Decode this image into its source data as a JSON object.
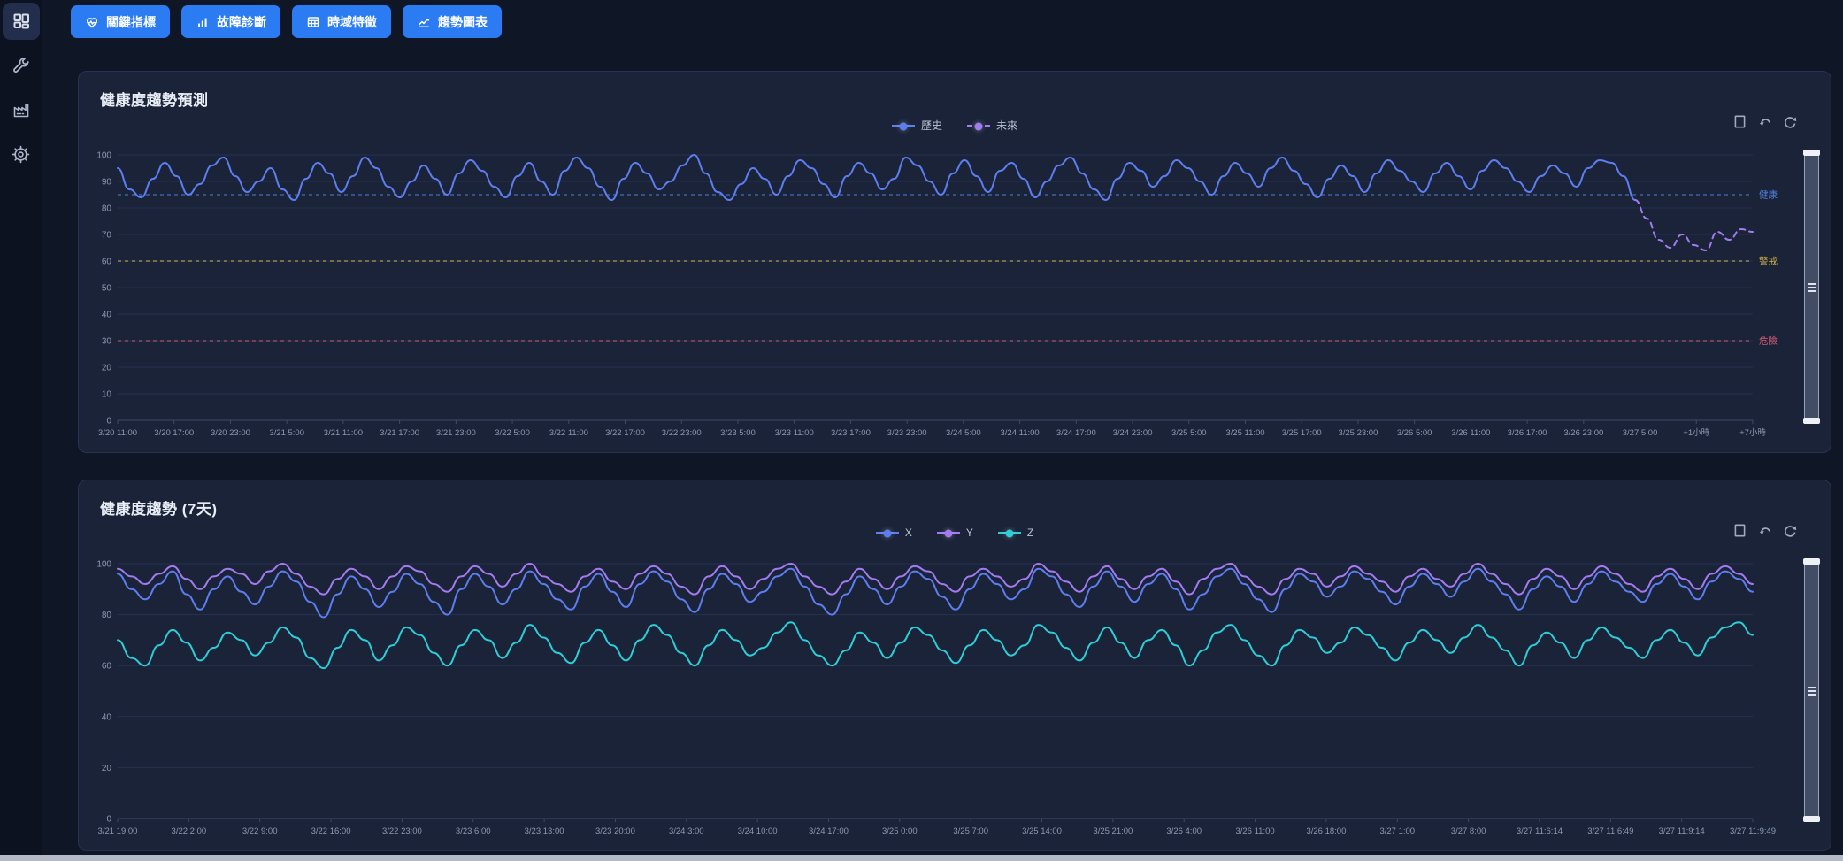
{
  "sidebar": {
    "items": [
      {
        "id": "dashboard",
        "icon": "dashboard-grid-icon",
        "active": true
      },
      {
        "id": "tools",
        "icon": "wrench-icon",
        "active": false
      },
      {
        "id": "factory",
        "icon": "factory-icon",
        "active": false
      },
      {
        "id": "settings",
        "icon": "gear-icon",
        "active": false
      }
    ]
  },
  "toolbar": {
    "buttons": [
      {
        "label": "關鍵指標",
        "icon": "heart-pulse-icon"
      },
      {
        "label": "故障診斷",
        "icon": "bar-chart-icon"
      },
      {
        "label": "時域特徵",
        "icon": "table-icon"
      },
      {
        "label": "趨勢圖表",
        "icon": "line-chart-icon"
      }
    ]
  },
  "panels": [
    {
      "title": "健康度趨勢預測"
    },
    {
      "title": "健康度趨勢 (7天)"
    }
  ],
  "colors": {
    "accent_blue": "#2b7bf3",
    "series_blue": "#5d7ef0",
    "series_purple": "#a37bf0",
    "series_cyan": "#2ccfd8",
    "threshold_blue": "#4f7fd9",
    "threshold_yellow": "#d7b84a",
    "threshold_red": "#d45b70",
    "panel_bg": "#1a2338",
    "page_bg": "#0f1626"
  },
  "chart_data": [
    {
      "type": "line",
      "name": "health-forecast",
      "title": "健康度趨勢預測",
      "ylim": [
        0,
        100
      ],
      "yticks": [
        0,
        10,
        20,
        30,
        40,
        50,
        60,
        70,
        80,
        90,
        100
      ],
      "grid": true,
      "legend_position": "top-center",
      "legend": [
        {
          "name": "歷史",
          "color": "#5d7ef0",
          "dashed": false
        },
        {
          "name": "未來",
          "color": "#a37bf0",
          "dashed": true
        }
      ],
      "thresholds": [
        {
          "value": 85,
          "label": "健康",
          "color": "#4f7fd9"
        },
        {
          "value": 60,
          "label": "警戒",
          "color": "#d7b84a"
        },
        {
          "value": 30,
          "label": "危險",
          "color": "#d45b70"
        }
      ],
      "x_labels": [
        "3/20 11:00",
        "3/20 17:00",
        "3/20 23:00",
        "3/21 5:00",
        "3/21 11:00",
        "3/21 17:00",
        "3/21 23:00",
        "3/22 5:00",
        "3/22 11:00",
        "3/22 17:00",
        "3/22 23:00",
        "3/23 5:00",
        "3/23 11:00",
        "3/23 17:00",
        "3/23 23:00",
        "3/24 5:00",
        "3/24 11:00",
        "3/24 17:00",
        "3/24 23:00",
        "3/25 5:00",
        "3/25 11:00",
        "3/25 17:00",
        "3/25 23:00",
        "3/26 5:00",
        "3/26 11:00",
        "3/26 17:00",
        "3/26 23:00",
        "3/27 5:00",
        "+1小時",
        "+7小時"
      ],
      "total_points": 140,
      "series": [
        {
          "name": "歷史",
          "color": "#5d7ef0",
          "dashed": false,
          "start": 0,
          "values": [
            95,
            87,
            84,
            91,
            97,
            92,
            85,
            89,
            96,
            99,
            92,
            86,
            90,
            95,
            87,
            83,
            91,
            97,
            93,
            86,
            92,
            99,
            95,
            88,
            84,
            90,
            96,
            91,
            85,
            93,
            98,
            94,
            88,
            84,
            92,
            97,
            90,
            85,
            94,
            99,
            95,
            88,
            83,
            91,
            97,
            93,
            87,
            90,
            96,
            100,
            93,
            86,
            83,
            89,
            95,
            91,
            85,
            92,
            98,
            95,
            89,
            84,
            92,
            97,
            93,
            87,
            91,
            99,
            96,
            90,
            85,
            93,
            98,
            92,
            86,
            94,
            97,
            91,
            84,
            90,
            96,
            99,
            93,
            87,
            83,
            91,
            97,
            94,
            88,
            92,
            98,
            95,
            90,
            85,
            92,
            97,
            93,
            88,
            95,
            99,
            94,
            89,
            84,
            91,
            96,
            92,
            86,
            93,
            98,
            94,
            90,
            86,
            93,
            97,
            92,
            87,
            94,
            98,
            95,
            90,
            86,
            92,
            96,
            93,
            88,
            95,
            98,
            97,
            92,
            83
          ]
        },
        {
          "name": "未來",
          "color": "#a37bf0",
          "dashed": true,
          "start": 129,
          "values": [
            83,
            76,
            68,
            65,
            70,
            66,
            64,
            71,
            68,
            72,
            71
          ]
        }
      ]
    },
    {
      "type": "line",
      "name": "health-trend-7d",
      "title": "健康度趨勢 (7天)",
      "ylim": [
        0,
        100
      ],
      "yticks": [
        0,
        20,
        40,
        60,
        80,
        100
      ],
      "grid": true,
      "legend_position": "top-center",
      "legend": [
        {
          "name": "X",
          "color": "#5d7ef0",
          "dashed": false
        },
        {
          "name": "Y",
          "color": "#a37bf0",
          "dashed": false
        },
        {
          "name": "Z",
          "color": "#2ccfd8",
          "dashed": false
        }
      ],
      "thresholds": [],
      "x_labels": [
        "3/21 19:00",
        "3/22 2:00",
        "3/22 9:00",
        "3/22 16:00",
        "3/22 23:00",
        "3/23 6:00",
        "3/23 13:00",
        "3/23 20:00",
        "3/24 3:00",
        "3/24 10:00",
        "3/24 17:00",
        "3/25 0:00",
        "3/25 7:00",
        "3/25 14:00",
        "3/25 21:00",
        "3/26 4:00",
        "3/26 11:00",
        "3/26 18:00",
        "3/27 1:00",
        "3/27 8:00",
        "3/27 11:6:14",
        "3/27 11:6:49",
        "3/27 11:9:14",
        "3/27 11:9:49"
      ],
      "total_points": 120,
      "series": [
        {
          "name": "X",
          "color": "#5d7ef0",
          "dashed": false,
          "start": 0,
          "values": [
            96,
            90,
            86,
            92,
            97,
            88,
            82,
            90,
            95,
            89,
            84,
            91,
            97,
            93,
            85,
            79,
            88,
            95,
            90,
            83,
            89,
            96,
            92,
            85,
            80,
            90,
            96,
            91,
            84,
            90,
            97,
            92,
            86,
            82,
            91,
            96,
            89,
            83,
            92,
            97,
            93,
            86,
            81,
            90,
            96,
            92,
            85,
            89,
            95,
            98,
            91,
            84,
            80,
            88,
            95,
            90,
            84,
            91,
            97,
            94,
            87,
            82,
            90,
            96,
            92,
            86,
            90,
            98,
            95,
            88,
            83,
            91,
            97,
            91,
            85,
            92,
            96,
            90,
            82,
            88,
            95,
            98,
            92,
            86,
            81,
            90,
            96,
            93,
            87,
            91,
            97,
            94,
            89,
            84,
            91,
            96,
            92,
            87,
            93,
            98,
            93,
            88,
            82,
            90,
            95,
            91,
            85,
            92,
            97,
            93,
            89,
            85,
            92,
            96,
            91,
            86,
            93,
            97,
            94,
            89
          ]
        },
        {
          "name": "Y",
          "color": "#a37bf0",
          "dashed": false,
          "start": 0,
          "values": [
            98,
            95,
            92,
            96,
            99,
            94,
            90,
            95,
            98,
            96,
            92,
            97,
            100,
            96,
            91,
            88,
            94,
            98,
            95,
            90,
            95,
            99,
            97,
            92,
            89,
            95,
            99,
            96,
            91,
            96,
            100,
            95,
            92,
            89,
            95,
            98,
            93,
            90,
            96,
            99,
            96,
            91,
            88,
            95,
            99,
            95,
            90,
            94,
            98,
            100,
            95,
            91,
            88,
            93,
            98,
            94,
            90,
            95,
            99,
            97,
            92,
            89,
            95,
            98,
            95,
            91,
            94,
            100,
            97,
            93,
            89,
            95,
            99,
            94,
            90,
            95,
            98,
            93,
            88,
            94,
            98,
            100,
            95,
            91,
            88,
            94,
            98,
            96,
            91,
            95,
            99,
            96,
            93,
            89,
            95,
            98,
            94,
            91,
            96,
            100,
            96,
            92,
            88,
            94,
            98,
            95,
            90,
            95,
            99,
            96,
            92,
            89,
            95,
            98,
            94,
            90,
            96,
            99,
            96,
            92
          ]
        },
        {
          "name": "Z",
          "color": "#2ccfd8",
          "dashed": false,
          "start": 0,
          "values": [
            70,
            63,
            60,
            68,
            74,
            69,
            62,
            67,
            73,
            70,
            64,
            69,
            75,
            71,
            63,
            59,
            67,
            74,
            70,
            62,
            68,
            75,
            72,
            65,
            60,
            68,
            74,
            70,
            63,
            69,
            76,
            71,
            65,
            61,
            69,
            74,
            68,
            62,
            70,
            76,
            72,
            65,
            60,
            68,
            74,
            70,
            64,
            67,
            73,
            77,
            70,
            64,
            60,
            66,
            73,
            69,
            63,
            69,
            75,
            72,
            66,
            61,
            68,
            74,
            70,
            64,
            68,
            76,
            73,
            67,
            62,
            69,
            75,
            69,
            63,
            70,
            74,
            68,
            60,
            66,
            73,
            76,
            70,
            64,
            60,
            68,
            74,
            71,
            65,
            69,
            75,
            72,
            67,
            62,
            69,
            74,
            70,
            65,
            71,
            76,
            71,
            66,
            60,
            68,
            73,
            69,
            63,
            70,
            75,
            71,
            67,
            63,
            70,
            74,
            69,
            64,
            71,
            75,
            77,
            72
          ]
        }
      ]
    }
  ]
}
